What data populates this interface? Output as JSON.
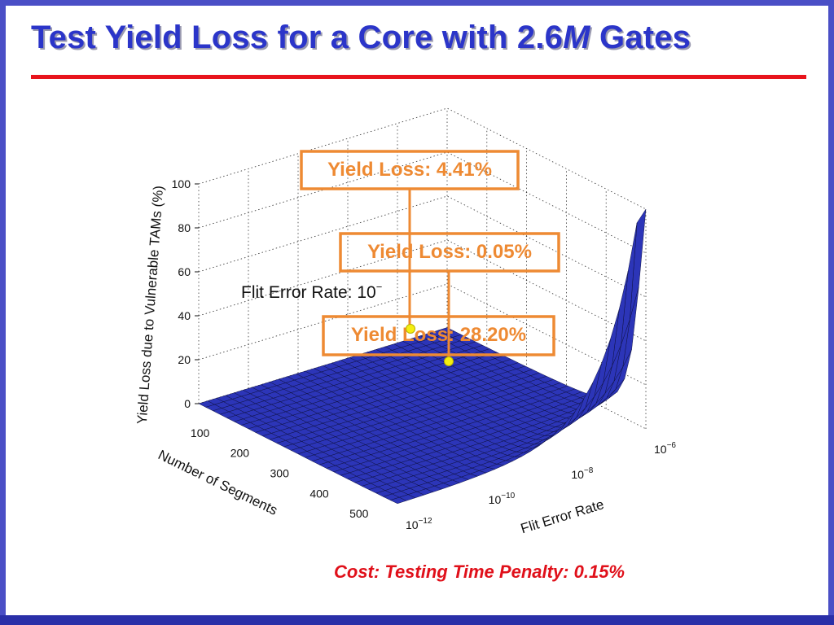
{
  "title": {
    "main": "Test Yield Loss for a Core with 2.6",
    "italic": "M",
    "tail": " Gates"
  },
  "chart_data": {
    "type": "surface",
    "zlabel": "Yield Loss due to Vulnerable TAMs (%)",
    "xlabel": "Number of Segments",
    "ylabel": "Flit Error Rate",
    "z_ticks": [
      "0",
      "20",
      "40",
      "60",
      "80",
      "100"
    ],
    "z_range": [
      0,
      100
    ],
    "x_ticks": [
      "100",
      "200",
      "300",
      "400",
      "500"
    ],
    "y_ticks": [
      {
        "base": "10",
        "exp": "−12"
      },
      {
        "base": "10",
        "exp": "−10"
      },
      {
        "base": "10",
        "exp": "−8"
      },
      {
        "base": "10",
        "exp": "−6"
      }
    ],
    "y_scale": "log",
    "annotations": [
      {
        "label": "Yield Loss: 4.41%",
        "value": 4.41
      },
      {
        "label": "Yield Loss: 0.05%",
        "value": 0.05
      },
      {
        "label": "Yield Loss: 28.20%",
        "value": 28.2
      }
    ],
    "note": {
      "text": "Flit Error Rate: 10",
      "exp": "−"
    },
    "colors": {
      "surface": "#2c35b8",
      "mesh": "#0b0d3a",
      "box": "#ee8a33",
      "marker": "#f4ee10"
    }
  },
  "cost": "Cost:  Testing Time Penalty: 0.15%"
}
